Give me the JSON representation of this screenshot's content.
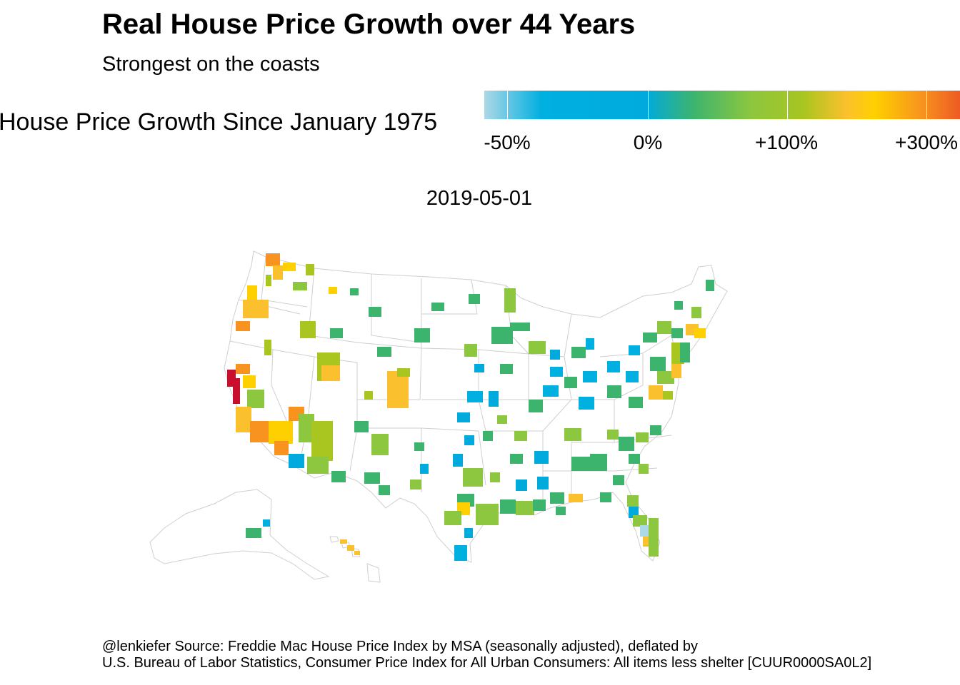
{
  "title": "Real House Price Growth over 44 Years",
  "subtitle": "Strongest on the coasts",
  "legend": {
    "title": "House Price Growth Since January 1975",
    "ticks": [
      "-50%",
      "0%",
      "+100%",
      "+300%"
    ],
    "colors": [
      "#add8e6",
      "#00b0e0",
      "#3db46d",
      "#8dc63f",
      "#a8c520",
      "#ffd000",
      "#f7931e",
      "#ee5a24",
      "#c8102e"
    ]
  },
  "date": "2019-05-01",
  "caption": {
    "line1": "@lenkiefer Source: Freddie Mac House Price Index by MSA (seasonally adjusted), deflated by",
    "line2": "U.S. Bureau of Labor Statistics, Consumer Price Index for All Urban Consumers: All items less shelter [CUUR0000SA0L2]"
  }
}
